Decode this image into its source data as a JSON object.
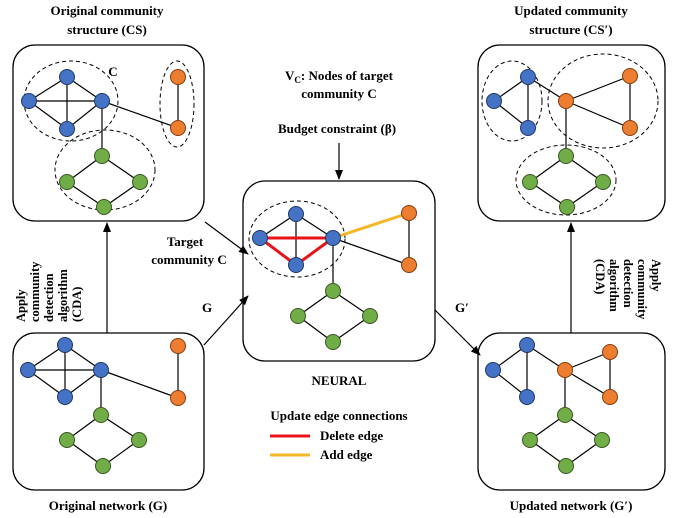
{
  "labels": {
    "cs_title_1": "Original community",
    "cs_title_2": "structure (CS)",
    "cs_community_tag": "C",
    "updated_cs_title_1": "Updated community",
    "updated_cs_title_2": "structure (CS′)",
    "vc_line_1": "V",
    "vc_sub": "C",
    "vc_line_1_rest": ": Nodes of target",
    "vc_line_2": "community C",
    "budget": "Budget constraint (β)",
    "target_1": "Target",
    "target_2": "community C",
    "edge_g": "G",
    "edge_g_prime": "G′",
    "neural": "NEURAL",
    "original_network": "Original network (G)",
    "updated_network": "Updated network (G′)",
    "cda_left": [
      "Apply",
      "community",
      "detection",
      "algorithm",
      "(CDA)"
    ],
    "cda_right": [
      "Apply",
      "community",
      "detection",
      "algorithm",
      "(CDA)"
    ],
    "legend_title": "Update edge connections",
    "legend_delete": "Delete edge",
    "legend_add": "Add edge"
  },
  "colors": {
    "blue_node": "#4472c4",
    "orange_node": "#ed7d31",
    "green_node": "#70ad47",
    "delete_edge": "#e8141b",
    "add_edge": "#f4b729"
  }
}
